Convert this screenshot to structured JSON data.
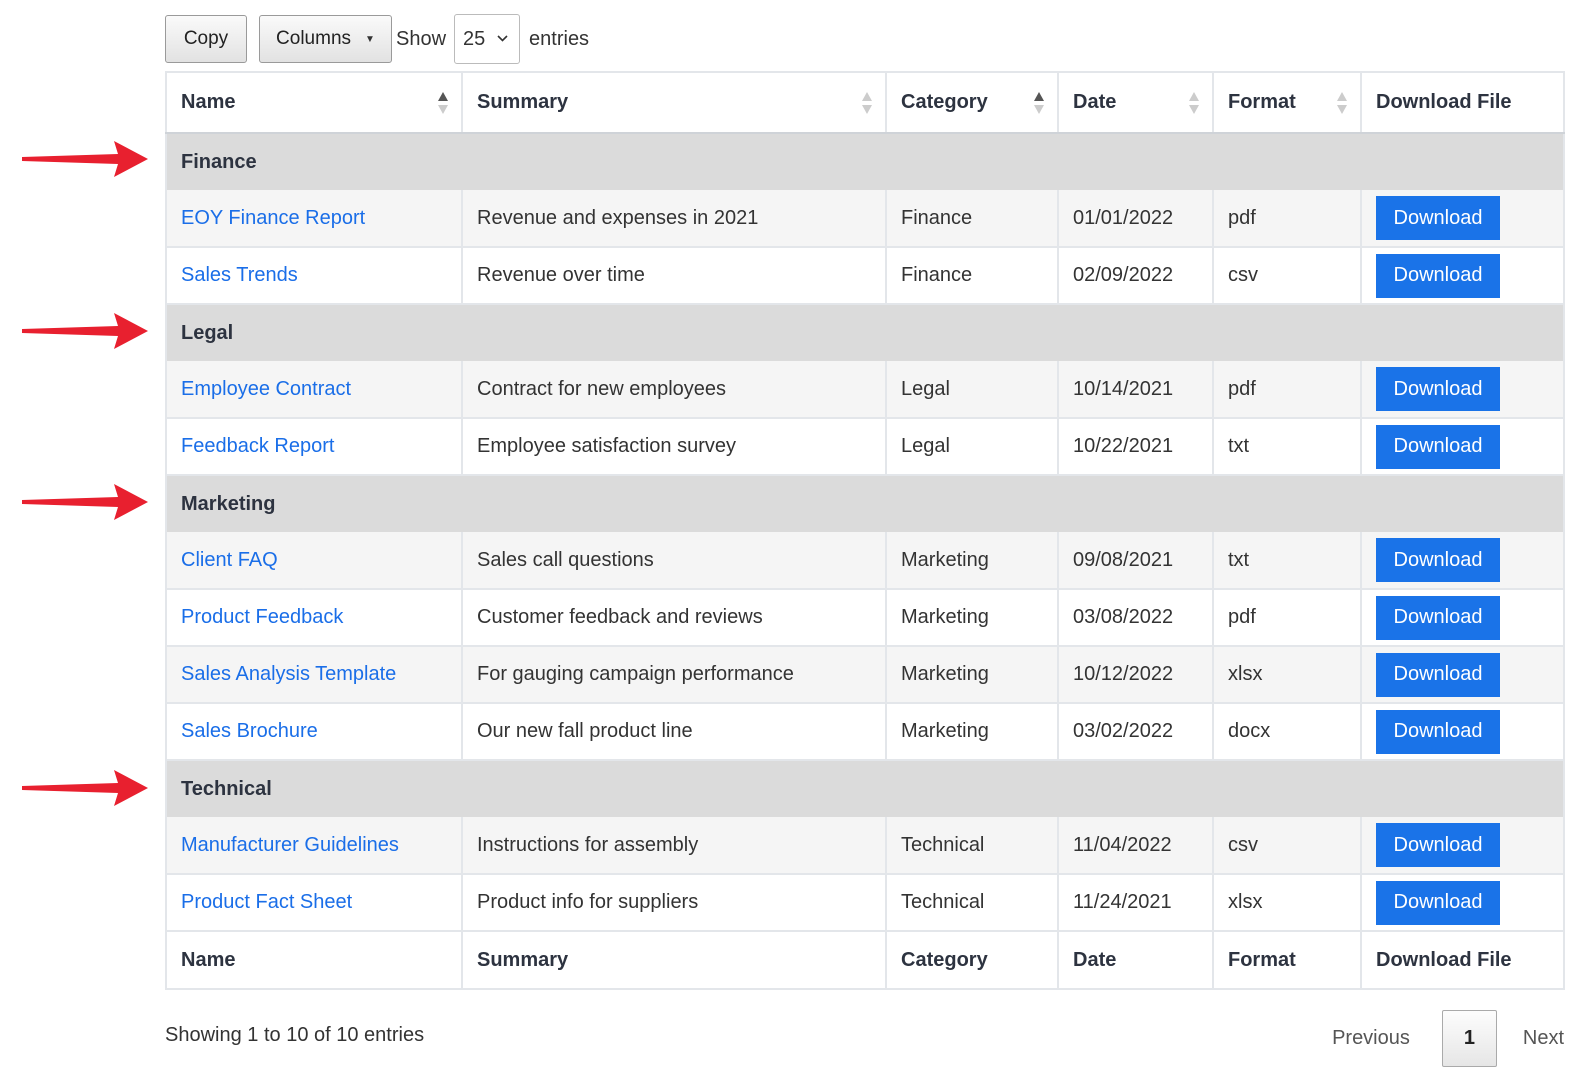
{
  "toolbar": {
    "copy_label": "Copy",
    "columns_label": "Columns",
    "show_label": "Show",
    "page_length": "25",
    "entries_label": "entries"
  },
  "table": {
    "headers": [
      "Name",
      "Summary",
      "Category",
      "Date",
      "Format",
      "Download File"
    ],
    "groups": [
      {
        "label": "Finance",
        "rows": [
          {
            "name": "EOY Finance Report",
            "summary": "Revenue and expenses in 2021",
            "category": "Finance",
            "date": "01/01/2022",
            "format": "pdf",
            "action": "Download"
          },
          {
            "name": "Sales Trends",
            "summary": "Revenue over time",
            "category": "Finance",
            "date": "02/09/2022",
            "format": "csv",
            "action": "Download"
          }
        ]
      },
      {
        "label": "Legal",
        "rows": [
          {
            "name": "Employee Contract",
            "summary": "Contract for new employees",
            "category": "Legal",
            "date": "10/14/2021",
            "format": "pdf",
            "action": "Download"
          },
          {
            "name": "Feedback Report",
            "summary": "Employee satisfaction survey",
            "category": "Legal",
            "date": "10/22/2021",
            "format": "txt",
            "action": "Download"
          }
        ]
      },
      {
        "label": "Marketing",
        "rows": [
          {
            "name": "Client FAQ",
            "summary": "Sales call questions",
            "category": "Marketing",
            "date": "09/08/2021",
            "format": "txt",
            "action": "Download"
          },
          {
            "name": "Product Feedback",
            "summary": "Customer feedback and reviews",
            "category": "Marketing",
            "date": "03/08/2022",
            "format": "pdf",
            "action": "Download"
          },
          {
            "name": "Sales Analysis Template",
            "summary": "For gauging campaign performance",
            "category": "Marketing",
            "date": "10/12/2022",
            "format": "xlsx",
            "action": "Download"
          },
          {
            "name": "Sales Brochure",
            "summary": "Our new fall product line",
            "category": "Marketing",
            "date": "03/02/2022",
            "format": "docx",
            "action": "Download"
          }
        ]
      },
      {
        "label": "Technical",
        "rows": [
          {
            "name": "Manufacturer Guidelines",
            "summary": "Instructions for assembly",
            "category": "Technical",
            "date": "11/04/2022",
            "format": "csv",
            "action": "Download"
          },
          {
            "name": "Product Fact Sheet",
            "summary": "Product info for suppliers",
            "category": "Technical",
            "date": "11/24/2021",
            "format": "xlsx",
            "action": "Download"
          }
        ]
      }
    ]
  },
  "footer": {
    "info": "Showing 1 to 10 of 10 entries",
    "previous_label": "Previous",
    "current_page": "1",
    "next_label": "Next"
  },
  "colors": {
    "link": "#1a6ee8",
    "download_button": "#1a73e8",
    "group_row": "#dbdbdb",
    "arrow": "#e8202f"
  }
}
